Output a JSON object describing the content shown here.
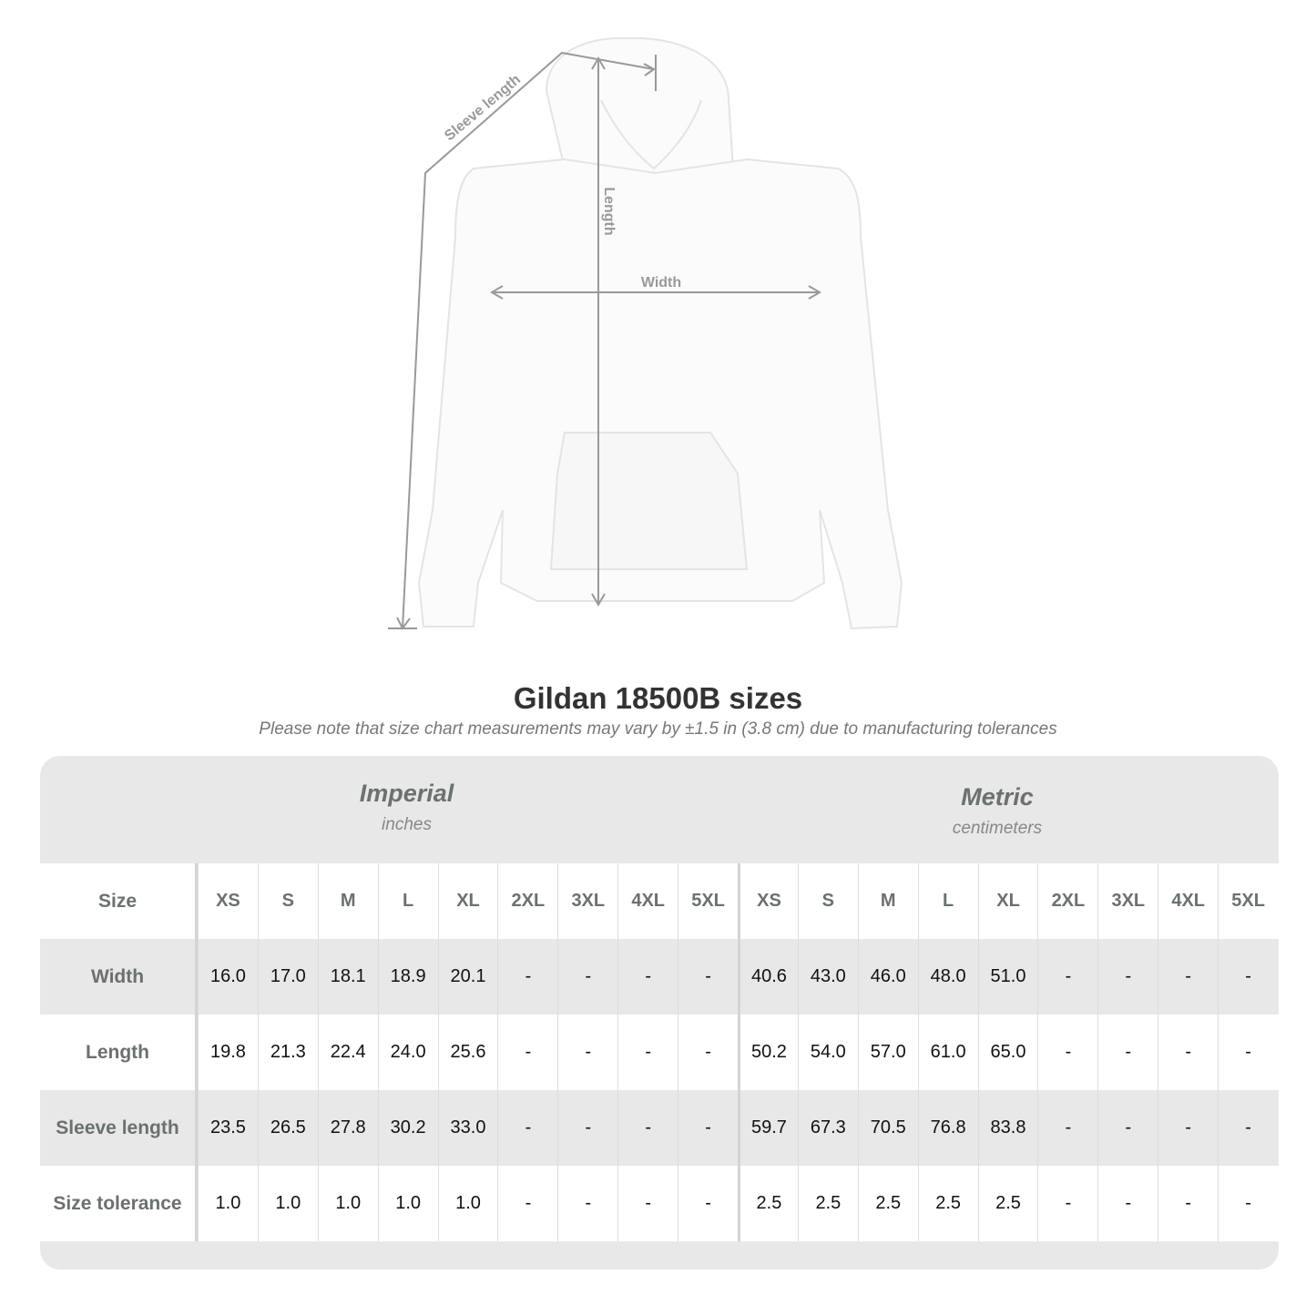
{
  "diagram": {
    "sleeve_label": "Sleeve length",
    "length_label": "Length",
    "width_label": "Width"
  },
  "title": "Gildan 18500B sizes",
  "subtitle": "Please note that size chart measurements may vary by ±1.5 in (3.8 cm) due to manufacturing tolerances",
  "imperial": {
    "name": "Imperial",
    "unit": "inches"
  },
  "metric": {
    "name": "Metric",
    "unit": "centimeters"
  },
  "table": {
    "size_label": "Size",
    "sizes": [
      "XS",
      "S",
      "M",
      "L",
      "XL",
      "2XL",
      "3XL",
      "4XL",
      "5XL"
    ],
    "rows": [
      {
        "label": "Width",
        "imperial": [
          "16.0",
          "17.0",
          "18.1",
          "18.9",
          "20.1",
          "-",
          "-",
          "-",
          "-"
        ],
        "metric": [
          "40.6",
          "43.0",
          "46.0",
          "48.0",
          "51.0",
          "-",
          "-",
          "-",
          "-"
        ]
      },
      {
        "label": "Length",
        "imperial": [
          "19.8",
          "21.3",
          "22.4",
          "24.0",
          "25.6",
          "-",
          "-",
          "-",
          "-"
        ],
        "metric": [
          "50.2",
          "54.0",
          "57.0",
          "61.0",
          "65.0",
          "-",
          "-",
          "-",
          "-"
        ]
      },
      {
        "label": "Sleeve length",
        "imperial": [
          "23.5",
          "26.5",
          "27.8",
          "30.2",
          "33.0",
          "-",
          "-",
          "-",
          "-"
        ],
        "metric": [
          "59.7",
          "67.3",
          "70.5",
          "76.8",
          "83.8",
          "-",
          "-",
          "-",
          "-"
        ]
      },
      {
        "label": "Size tolerance",
        "imperial": [
          "1.0",
          "1.0",
          "1.0",
          "1.0",
          "1.0",
          "-",
          "-",
          "-",
          "-"
        ],
        "metric": [
          "2.5",
          "2.5",
          "2.5",
          "2.5",
          "2.5",
          "-",
          "-",
          "-",
          "-"
        ]
      }
    ]
  },
  "colors": {
    "panel": "#e8e8e8",
    "label": "#6b7070",
    "measure_line": "#999999"
  }
}
